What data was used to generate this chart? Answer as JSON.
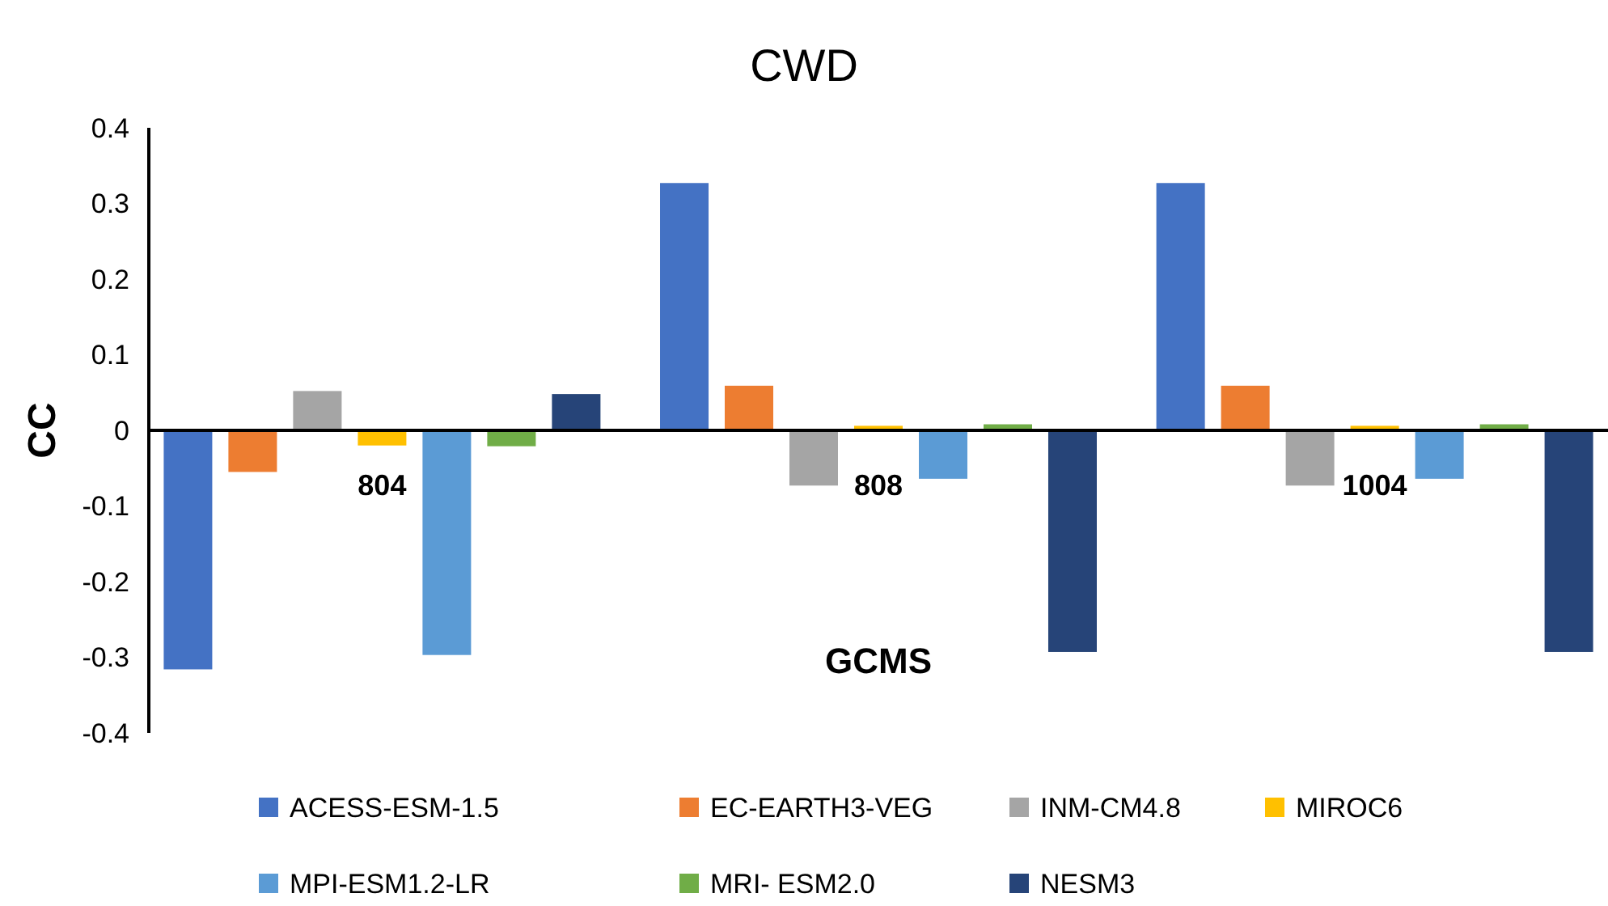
{
  "chart_data": {
    "type": "bar",
    "title": "CWD",
    "xlabel": "GCMS",
    "ylabel": "CC",
    "categories": [
      "804",
      "808",
      "1004"
    ],
    "series": [
      {
        "name": "ACESS-ESM-1.5",
        "color": "#4472c4",
        "values": [
          -0.316,
          0.327,
          0.327
        ]
      },
      {
        "name": "EC-EARTH3-VEG",
        "color": "#ed7d31",
        "values": [
          -0.055,
          0.059,
          0.059
        ]
      },
      {
        "name": "INM-CM4.8",
        "color": "#a5a5a5",
        "values": [
          0.052,
          -0.073,
          -0.073
        ]
      },
      {
        "name": "MIROC6",
        "color": "#ffc000",
        "values": [
          -0.02,
          0.006,
          0.006
        ]
      },
      {
        "name": "MPI-ESM1.2-LR",
        "color": "#5b9bd5",
        "values": [
          -0.297,
          -0.064,
          -0.064
        ]
      },
      {
        "name": "MRI- ESM2.0",
        "color": "#70ad47",
        "values": [
          -0.021,
          0.008,
          0.008
        ]
      },
      {
        "name": "NESM3",
        "color": "#264478",
        "values": [
          0.048,
          -0.293,
          -0.293
        ]
      }
    ],
    "ylim": [
      -0.4,
      0.4
    ],
    "yticks": [
      -0.4,
      -0.3,
      -0.2,
      -0.1,
      0,
      0.1,
      0.2,
      0.3,
      0.4
    ],
    "grid": false,
    "legend": "bottom"
  }
}
